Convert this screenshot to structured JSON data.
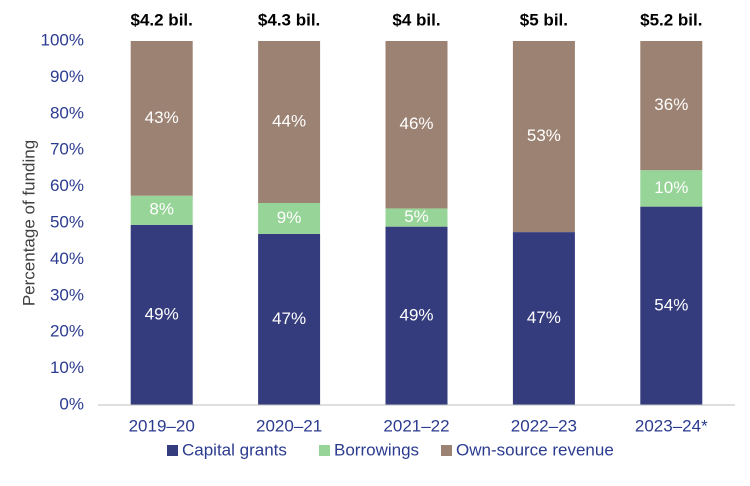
{
  "chart_data": {
    "type": "bar",
    "stacked": true,
    "categories": [
      "2019–20",
      "2020–21",
      "2021–22",
      "2022–23",
      "2023–24*"
    ],
    "totals": [
      "$4.2 bil.",
      "$4.3 bil.",
      "$4 bil.",
      "$5 bil.",
      "$5.2 bil."
    ],
    "series": [
      {
        "name": "Capital grants",
        "color": "#353c7d",
        "values": [
          49.5,
          47,
          49,
          47.5,
          54.5
        ],
        "labels": [
          "49%",
          "47%",
          "49%",
          "47%",
          "54%"
        ]
      },
      {
        "name": "Borrowings",
        "color": "#97d497",
        "values": [
          8,
          8.5,
          5,
          0,
          10
        ],
        "labels": [
          "8%",
          "9%",
          "5%",
          "",
          "10%"
        ]
      },
      {
        "name": "Own-source revenue",
        "color": "#9c8272",
        "values": [
          42.5,
          44.5,
          46,
          52.5,
          35.5
        ],
        "labels": [
          "43%",
          "44%",
          "46%",
          "53%",
          "36%"
        ]
      }
    ],
    "yticks": [
      "0%",
      "10%",
      "20%",
      "30%",
      "40%",
      "50%",
      "60%",
      "70%",
      "80%",
      "90%",
      "100%"
    ],
    "ylim": [
      0,
      100
    ],
    "ylabel": "Percentage of funding",
    "xlabel": "",
    "grid": false,
    "legend": "bottom"
  }
}
